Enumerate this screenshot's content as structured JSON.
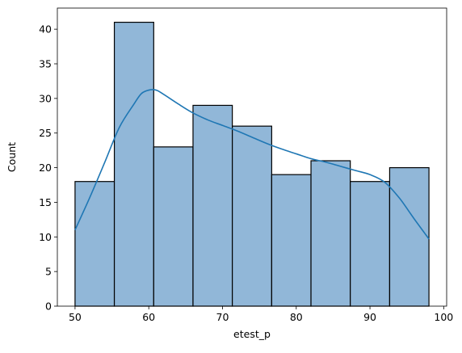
{
  "chart_data": {
    "type": "bar",
    "subtype": "histogram-with-kde",
    "title": "",
    "xlabel": "etest_p",
    "ylabel": "Count",
    "xlim": [
      47.6,
      100.4
    ],
    "ylim": [
      0,
      43.05
    ],
    "xticks": [
      50,
      60,
      70,
      80,
      90,
      100
    ],
    "yticks": [
      0,
      5,
      10,
      15,
      20,
      25,
      30,
      35,
      40
    ],
    "bin_edges": [
      50,
      55.33,
      60.67,
      66.0,
      71.33,
      76.67,
      82.0,
      87.33,
      92.67,
      98.0
    ],
    "values": [
      18,
      41,
      23,
      29,
      26,
      19,
      21,
      18,
      20
    ],
    "kde": {
      "x": [
        50,
        52,
        54,
        56,
        58,
        59,
        60,
        61,
        62,
        64,
        66,
        68,
        70,
        72,
        74,
        76,
        78,
        80,
        82,
        84,
        86,
        88,
        90,
        92,
        94,
        96,
        98
      ],
      "y": [
        11.0,
        15.7,
        20.7,
        25.8,
        29.2,
        30.7,
        31.2,
        31.2,
        30.6,
        29.2,
        27.9,
        26.9,
        26.1,
        25.3,
        24.4,
        23.5,
        22.7,
        22.0,
        21.3,
        20.8,
        20.2,
        19.6,
        19.0,
        17.9,
        15.6,
        12.6,
        9.7
      ]
    },
    "grid": false,
    "legend": "none",
    "colors": {
      "bar_fill": "#91b7d8",
      "bar_edge": "#000000",
      "kde_line": "#1f77b4"
    }
  }
}
